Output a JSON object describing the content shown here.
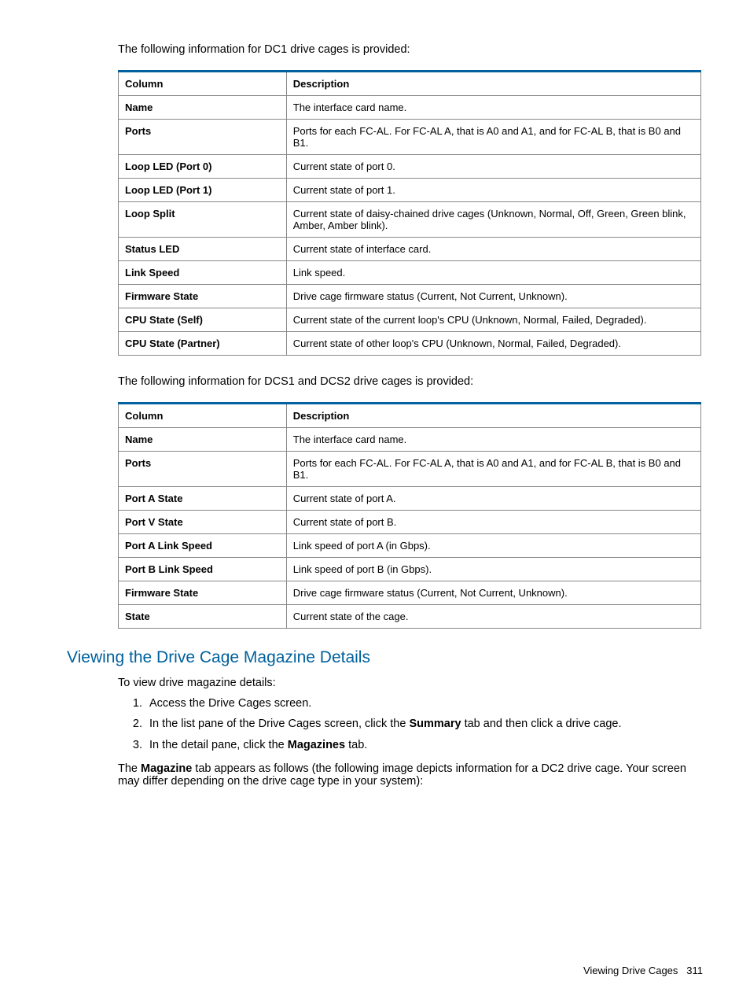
{
  "intro1": "The following information for DC1 drive cages is provided:",
  "intro2": "The following information for DCS1 and DCS2 drive cages is provided:",
  "table1": {
    "headers": {
      "col1": "Column",
      "col2": "Description"
    },
    "rows": [
      {
        "col1": "Name",
        "col2": "The interface card name."
      },
      {
        "col1": "Ports",
        "col2": "Ports for each FC-AL. For FC-AL A, that is A0 and A1, and for FC-AL B, that is B0 and B1."
      },
      {
        "col1": "Loop LED (Port 0)",
        "col2": "Current state of port 0."
      },
      {
        "col1": "Loop LED (Port 1)",
        "col2": "Current state of port 1."
      },
      {
        "col1": "Loop Split",
        "col2": "Current state of daisy-chained drive cages (Unknown, Normal, Off, Green, Green blink, Amber, Amber blink)."
      },
      {
        "col1": "Status LED",
        "col2": "Current state of interface card."
      },
      {
        "col1": "Link Speed",
        "col2": "Link speed."
      },
      {
        "col1": "Firmware State",
        "col2": "Drive cage firmware status (Current, Not Current, Unknown)."
      },
      {
        "col1": "CPU State (Self)",
        "col2": "Current state of the current loop's CPU (Unknown, Normal, Failed, Degraded)."
      },
      {
        "col1": "CPU State (Partner)",
        "col2": "Current state of other loop's CPU (Unknown, Normal, Failed, Degraded)."
      }
    ]
  },
  "table2": {
    "headers": {
      "col1": "Column",
      "col2": "Description"
    },
    "rows": [
      {
        "col1": "Name",
        "col2": "The interface card name."
      },
      {
        "col1": "Ports",
        "col2": "Ports for each FC-AL. For FC-AL A, that is A0 and A1, and for FC-AL B, that is B0 and B1."
      },
      {
        "col1": "Port A State",
        "col2": "Current state of port A."
      },
      {
        "col1": "Port V State",
        "col2": "Current state of port B."
      },
      {
        "col1": "Port A Link Speed",
        "col2": "Link speed of port A (in Gbps)."
      },
      {
        "col1": "Port B Link Speed",
        "col2": "Link speed of port B (in Gbps)."
      },
      {
        "col1": "Firmware State",
        "col2": "Drive cage firmware status (Current, Not Current, Unknown)."
      },
      {
        "col1": "State",
        "col2": "Current state of the cage."
      }
    ]
  },
  "section_heading": "Viewing the Drive Cage Magazine Details",
  "view_intro": "To view drive magazine details:",
  "steps": {
    "step1": "Access the Drive Cages screen.",
    "step2_pre": "In the list pane of the Drive Cages screen, click the ",
    "step2_bold": "Summary",
    "step2_post": " tab and then click a drive cage.",
    "step3_pre": "In the detail pane, click the ",
    "step3_bold": "Magazines",
    "step3_post": " tab."
  },
  "note_pre": "The ",
  "note_bold": "Magazine",
  "note_post": " tab appears as follows (the following image depicts information for a DC2 drive cage. Your screen may differ depending on the drive cage type in your system):",
  "footer_text": "Viewing Drive Cages",
  "footer_page": "311"
}
